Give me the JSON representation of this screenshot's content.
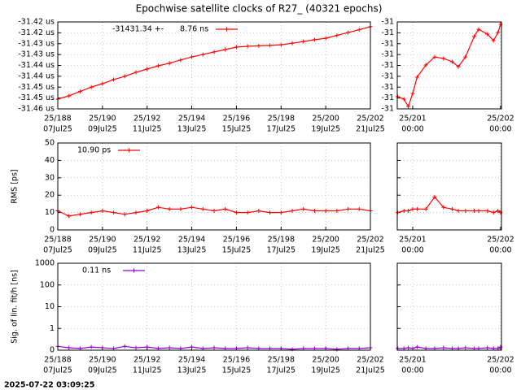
{
  "title": "Epochwise satellite clocks of R27_ (40321 epochs)",
  "timestamp": "2025-07-22 03:09:25",
  "chart_data": [
    {
      "type": "line",
      "annotation": "-31431.34 +-",
      "xlim": [
        188,
        202
      ],
      "xticks": [
        {
          "value": 188,
          "label": "25/188",
          "sublabel": "07Jul25"
        },
        {
          "value": 190,
          "label": "25/190",
          "sublabel": "09Jul25"
        },
        {
          "value": 192,
          "label": "25/192",
          "sublabel": "11Jul25"
        },
        {
          "value": 194,
          "label": "25/194",
          "sublabel": "13Jul25"
        },
        {
          "value": 196,
          "label": "25/196",
          "sublabel": "15Jul25"
        },
        {
          "value": 198,
          "label": "25/198",
          "sublabel": "17Jul25"
        },
        {
          "value": 200,
          "label": "25/200",
          "sublabel": "19Jul25"
        },
        {
          "value": 202,
          "label": "25/202",
          "sublabel": "21Jul25"
        }
      ],
      "ylim": [
        -31.46,
        -31.42
      ],
      "yticks": [
        {
          "value": -31.42,
          "label": "-31.42 us"
        },
        {
          "value": -31.425,
          "label": "-31.42 us"
        },
        {
          "value": -31.43,
          "label": "-31.43 us"
        },
        {
          "value": -31.435,
          "label": "-31.43 us"
        },
        {
          "value": -31.44,
          "label": "-31.44 us"
        },
        {
          "value": -31.445,
          "label": "-31.44 us"
        },
        {
          "value": -31.45,
          "label": "-31.45 us"
        },
        {
          "value": -31.455,
          "label": "-31.45 us"
        },
        {
          "value": -31.46,
          "label": "-31.46 us"
        }
      ],
      "grid": true,
      "log": false,
      "x": [
        188,
        188.5,
        189,
        189.5,
        190,
        190.5,
        191,
        191.5,
        192,
        192.5,
        193,
        193.5,
        194,
        194.5,
        195,
        195.5,
        196,
        196.5,
        197,
        197.5,
        198,
        198.5,
        199,
        199.5,
        200,
        200.5,
        201,
        201.5,
        202
      ],
      "series": [
        {
          "name": "8.76 ns",
          "color": "#ff0000",
          "values": [
            -31.4555,
            -31.454,
            -31.452,
            -31.45,
            -31.4484,
            -31.4465,
            -31.445,
            -31.4432,
            -31.4417,
            -31.4402,
            -31.439,
            -31.4375,
            -31.4361,
            -31.435,
            -31.4338,
            -31.4327,
            -31.4316,
            -31.4312,
            -31.431,
            -31.4308,
            -31.4305,
            -31.4298,
            -31.429,
            -31.4282,
            -31.4275,
            -31.4262,
            -31.4249,
            -31.4236,
            -31.4222
          ]
        }
      ]
    },
    {
      "type": "line",
      "xlim": [
        200.824,
        202.01
      ],
      "xticks": [
        {
          "value": 201,
          "label": "25/201",
          "sublabel": "00:00"
        },
        {
          "value": 202,
          "label": "25/202",
          "sublabel": "00:00"
        }
      ],
      "ylim": [
        -31.4258,
        -31.4218
      ],
      "yticks": [
        {
          "value": -31.4218,
          "label": "-31"
        },
        {
          "value": -31.4223,
          "label": "-31"
        },
        {
          "value": -31.4228,
          "label": "-31"
        },
        {
          "value": -31.4233,
          "label": "-31"
        },
        {
          "value": -31.4238,
          "label": "-31"
        },
        {
          "value": -31.4243,
          "label": "-31"
        },
        {
          "value": -31.4248,
          "label": "-31"
        },
        {
          "value": -31.4253,
          "label": "-31"
        },
        {
          "value": -31.4258,
          "label": "-31"
        }
      ],
      "grid": true,
      "log": false,
      "x": [
        200.83,
        200.9,
        200.95,
        201.0,
        201.05,
        201.15,
        201.25,
        201.35,
        201.45,
        201.52,
        201.6,
        201.7,
        201.75,
        201.85,
        201.92,
        201.97,
        202.0
      ],
      "series": [
        {
          "color": "#ff0000",
          "values": [
            -31.42524,
            -31.42535,
            -31.42569,
            -31.42509,
            -31.42434,
            -31.42378,
            -31.42341,
            -31.42348,
            -31.42363,
            -31.42386,
            -31.42341,
            -31.42247,
            -31.42214,
            -31.42236,
            -31.42266,
            -31.42229,
            -31.42191
          ]
        }
      ]
    },
    {
      "type": "line",
      "y_label": "RMS [ps]",
      "xlim": [
        188,
        202
      ],
      "xticks": [
        {
          "value": 188,
          "label": "25/188",
          "sublabel": "07Jul25"
        },
        {
          "value": 190,
          "label": "25/190",
          "sublabel": "09Jul25"
        },
        {
          "value": 192,
          "label": "25/192",
          "sublabel": "11Jul25"
        },
        {
          "value": 194,
          "label": "25/194",
          "sublabel": "13Jul25"
        },
        {
          "value": 196,
          "label": "25/196",
          "sublabel": "15Jul25"
        },
        {
          "value": 198,
          "label": "25/198",
          "sublabel": "17Jul25"
        },
        {
          "value": 200,
          "label": "25/200",
          "sublabel": "19Jul25"
        },
        {
          "value": 202,
          "label": "25/202",
          "sublabel": "21Jul25"
        }
      ],
      "ylim": [
        0,
        50
      ],
      "yticks": [
        0,
        10,
        20,
        30,
        40,
        50
      ],
      "grid": true,
      "log": false,
      "x": [
        188,
        188.5,
        189,
        189.5,
        190,
        190.5,
        191,
        191.5,
        192,
        192.5,
        193,
        193.5,
        194,
        194.5,
        195,
        195.5,
        196,
        196.5,
        197,
        197.5,
        198,
        198.5,
        199,
        199.5,
        200,
        200.5,
        201,
        201.5,
        202
      ],
      "series": [
        {
          "name": "10.90 ps",
          "color": "#ff0000",
          "values": [
            11,
            8,
            9,
            10,
            11,
            10,
            9,
            10,
            11,
            13,
            12,
            12,
            13,
            12,
            11,
            12,
            10,
            10,
            11,
            10,
            10,
            11,
            12,
            11,
            11,
            11,
            12,
            12,
            11
          ]
        }
      ]
    },
    {
      "type": "line",
      "xlim": [
        200.824,
        202.01
      ],
      "xticks": [
        {
          "value": 201,
          "label": "25/201",
          "sublabel": "00:00"
        },
        {
          "value": 202,
          "label": "25/202",
          "sublabel": "00:00"
        }
      ],
      "ylim": [
        0,
        50
      ],
      "yticks": [
        {
          "value": 0,
          "label": ""
        },
        {
          "value": 10,
          "label": ""
        },
        {
          "value": 20,
          "label": ""
        },
        {
          "value": 30,
          "label": ""
        },
        {
          "value": 40,
          "label": ""
        },
        {
          "value": 50,
          "label": ""
        }
      ],
      "grid": true,
      "log": false,
      "x": [
        200.83,
        200.9,
        200.95,
        201.0,
        201.05,
        201.15,
        201.25,
        201.35,
        201.45,
        201.52,
        201.6,
        201.7,
        201.75,
        201.85,
        201.92,
        201.97,
        202.0
      ],
      "series": [
        {
          "color": "#ff0000",
          "values": [
            10,
            11,
            11,
            12,
            12,
            12,
            19,
            13,
            12,
            11,
            11,
            11,
            11,
            11,
            10,
            11,
            10
          ]
        }
      ]
    },
    {
      "type": "line",
      "y_label": "Sig. of lin. fit/h [ns]",
      "xlim": [
        188,
        202
      ],
      "xticks": [
        {
          "value": 188,
          "label": "25/188",
          "sublabel": "07Jul25"
        },
        {
          "value": 190,
          "label": "25/190",
          "sublabel": "09Jul25"
        },
        {
          "value": 192,
          "label": "25/192",
          "sublabel": "11Jul25"
        },
        {
          "value": 194,
          "label": "25/194",
          "sublabel": "13Jul25"
        },
        {
          "value": 196,
          "label": "25/196",
          "sublabel": "15Jul25"
        },
        {
          "value": 198,
          "label": "25/198",
          "sublabel": "17Jul25"
        },
        {
          "value": 200,
          "label": "25/200",
          "sublabel": "19Jul25"
        },
        {
          "value": 202,
          "label": "25/202",
          "sublabel": "21Jul25"
        }
      ],
      "ylim": [
        0.1,
        1000
      ],
      "yticks": [
        {
          "value": 0.1,
          "label": "0"
        },
        1,
        10,
        100,
        1000
      ],
      "grid": true,
      "log": true,
      "x": [
        188,
        188.5,
        189,
        189.5,
        190,
        190.5,
        191,
        191.5,
        192,
        192.5,
        193,
        193.5,
        194,
        194.5,
        195,
        195.5,
        196,
        196.5,
        197,
        197.5,
        198,
        198.5,
        199,
        199.5,
        200,
        200.5,
        201,
        201.5,
        202
      ],
      "series": [
        {
          "name": "0.11 ns",
          "color": "#9400d3",
          "values": [
            0.15,
            0.13,
            0.12,
            0.14,
            0.13,
            0.12,
            0.15,
            0.13,
            0.14,
            0.12,
            0.13,
            0.12,
            0.14,
            0.12,
            0.13,
            0.12,
            0.12,
            0.13,
            0.12,
            0.12,
            0.12,
            0.11,
            0.12,
            0.12,
            0.12,
            0.11,
            0.12,
            0.12,
            0.13
          ]
        }
      ]
    },
    {
      "type": "line",
      "xlim": [
        200.824,
        202.01
      ],
      "xticks": [
        {
          "value": 201,
          "label": "25/201",
          "sublabel": "00:00"
        },
        {
          "value": 202,
          "label": "25/202",
          "sublabel": "00:00"
        }
      ],
      "ylim": [
        0.1,
        1000
      ],
      "yticks": [
        {
          "value": 0.1,
          "label": ""
        },
        {
          "value": 1,
          "label": ""
        },
        {
          "value": 10,
          "label": ""
        },
        {
          "value": 100,
          "label": ""
        },
        {
          "value": 1000,
          "label": ""
        }
      ],
      "grid": true,
      "log": true,
      "x": [
        200.83,
        200.9,
        200.95,
        201.0,
        201.05,
        201.15,
        201.25,
        201.35,
        201.45,
        201.52,
        201.6,
        201.7,
        201.75,
        201.85,
        201.92,
        201.97,
        202.0
      ],
      "series": [
        {
          "color": "#9400d3",
          "values": [
            0.12,
            0.12,
            0.13,
            0.12,
            0.14,
            0.12,
            0.12,
            0.13,
            0.12,
            0.12,
            0.13,
            0.12,
            0.12,
            0.13,
            0.12,
            0.12,
            0.14
          ]
        }
      ]
    }
  ]
}
